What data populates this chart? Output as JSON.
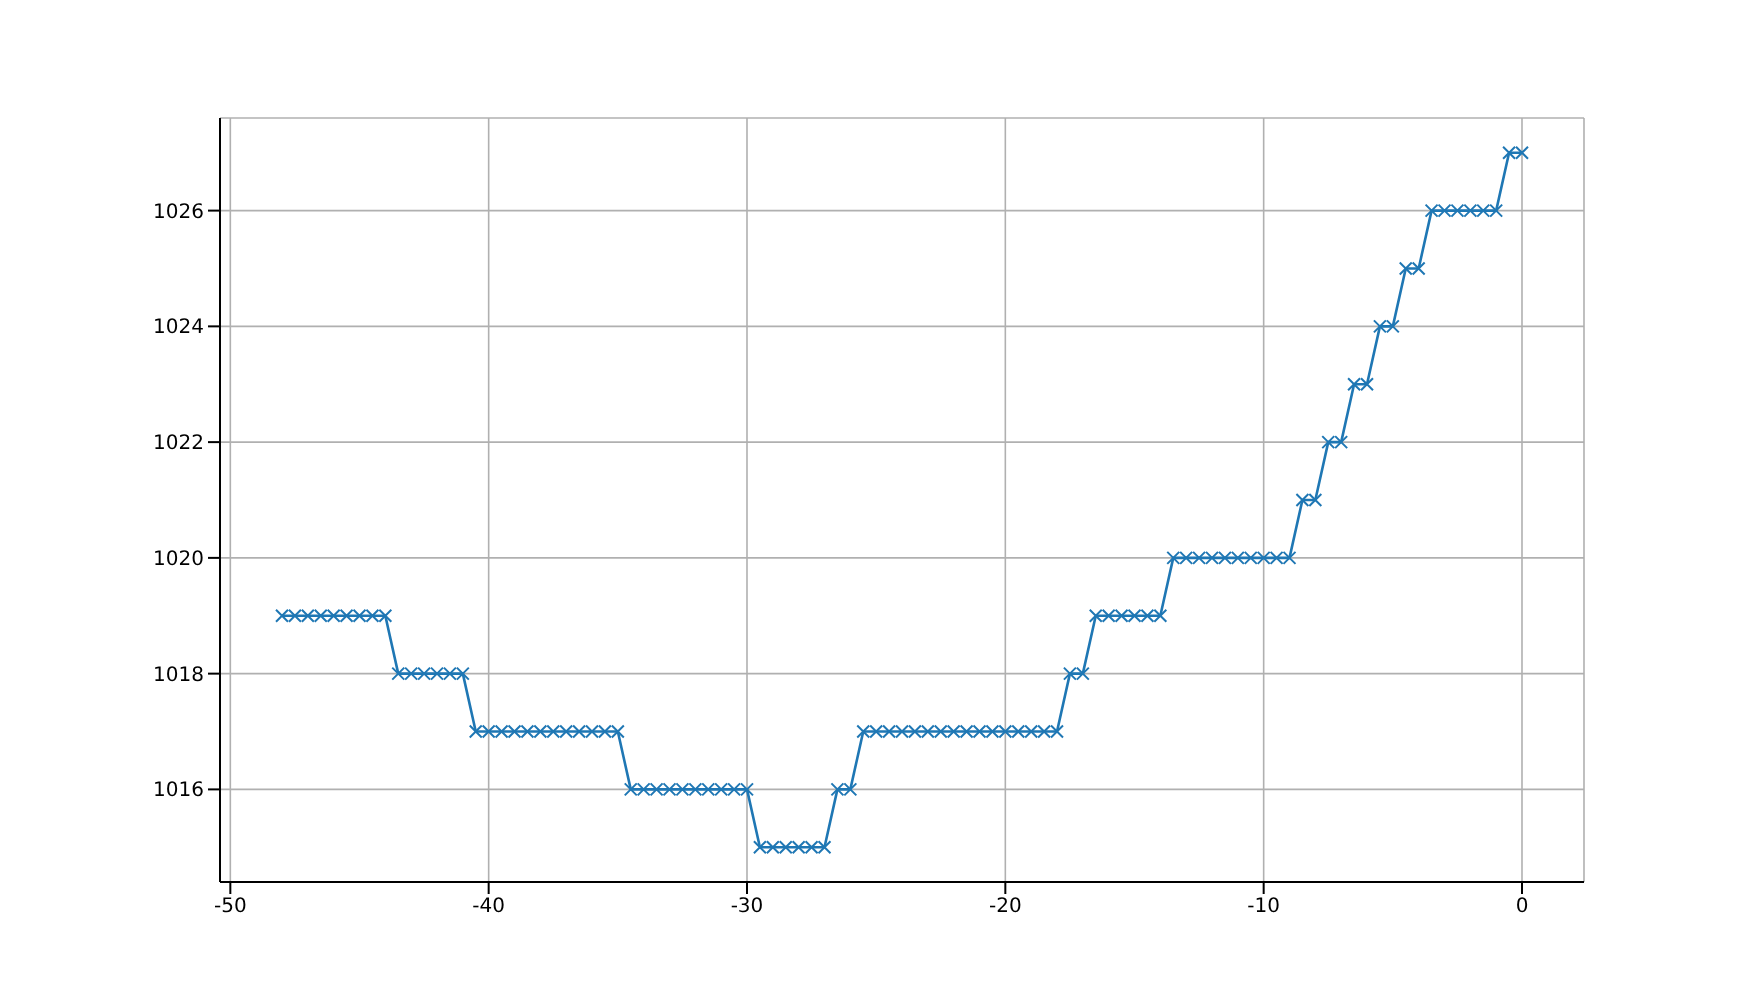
{
  "chart_data": {
    "type": "line",
    "x": [
      -48,
      -47.5,
      -47,
      -46.5,
      -46,
      -45.5,
      -45,
      -44.5,
      -44,
      -43.5,
      -43,
      -42.5,
      -42,
      -41.5,
      -41,
      -40.5,
      -40,
      -39.5,
      -39,
      -38.5,
      -38,
      -37.5,
      -37,
      -36.5,
      -36,
      -35.5,
      -35,
      -34.5,
      -34,
      -33.5,
      -33,
      -32.5,
      -32,
      -31.5,
      -31,
      -30.5,
      -30,
      -29.5,
      -29,
      -28.5,
      -28,
      -27.5,
      -27,
      -26.5,
      -26,
      -25.5,
      -25,
      -24.5,
      -24,
      -23.5,
      -23,
      -22.5,
      -22,
      -21.5,
      -21,
      -20.5,
      -20,
      -19.5,
      -19,
      -18.5,
      -18,
      -17.5,
      -17,
      -16.5,
      -16,
      -15.5,
      -15,
      -14.5,
      -14,
      -13.5,
      -13,
      -12.5,
      -12,
      -11.5,
      -11,
      -10.5,
      -10,
      -9.5,
      -9,
      -8.5,
      -8,
      -7.5,
      -7,
      -6.5,
      -6,
      -5.5,
      -5,
      -4.5,
      -4,
      -3.5,
      -3,
      -2.5,
      -2,
      -1.5,
      -1,
      -0.5,
      0
    ],
    "series": [
      {
        "color": "#1f77b4",
        "values": [
          1019,
          1019,
          1019,
          1019,
          1019,
          1019,
          1019,
          1019,
          1019,
          1018,
          1018,
          1018,
          1018,
          1018,
          1018,
          1017,
          1017,
          1017,
          1017,
          1017,
          1017,
          1017,
          1017,
          1017,
          1017,
          1017,
          1017,
          1016,
          1016,
          1016,
          1016,
          1016,
          1016,
          1016,
          1016,
          1016,
          1016,
          1015,
          1015,
          1015,
          1015,
          1015,
          1015,
          1016,
          1016,
          1017,
          1017,
          1017,
          1017,
          1017,
          1017,
          1017,
          1017,
          1017,
          1017,
          1017,
          1017,
          1017,
          1017,
          1017,
          1017,
          1018,
          1018,
          1019,
          1019,
          1019,
          1019,
          1019,
          1019,
          1020,
          1020,
          1020,
          1020,
          1020,
          1020,
          1020,
          1020,
          1020,
          1020,
          1021,
          1021,
          1022,
          1022,
          1023,
          1023,
          1024,
          1024,
          1025,
          1025,
          1026,
          1026,
          1026,
          1026,
          1026,
          1026,
          1027,
          1027
        ]
      }
    ],
    "xlim": [
      -50.4,
      2.4
    ],
    "xticks": [
      -50,
      -40,
      -30,
      -20,
      -10,
      0
    ],
    "ylim": [
      1014.4,
      1027.6
    ],
    "yticks": [
      1016,
      1018,
      1020,
      1022,
      1024,
      1026
    ],
    "grid": true,
    "marker": "cross",
    "line_style": "solid"
  }
}
